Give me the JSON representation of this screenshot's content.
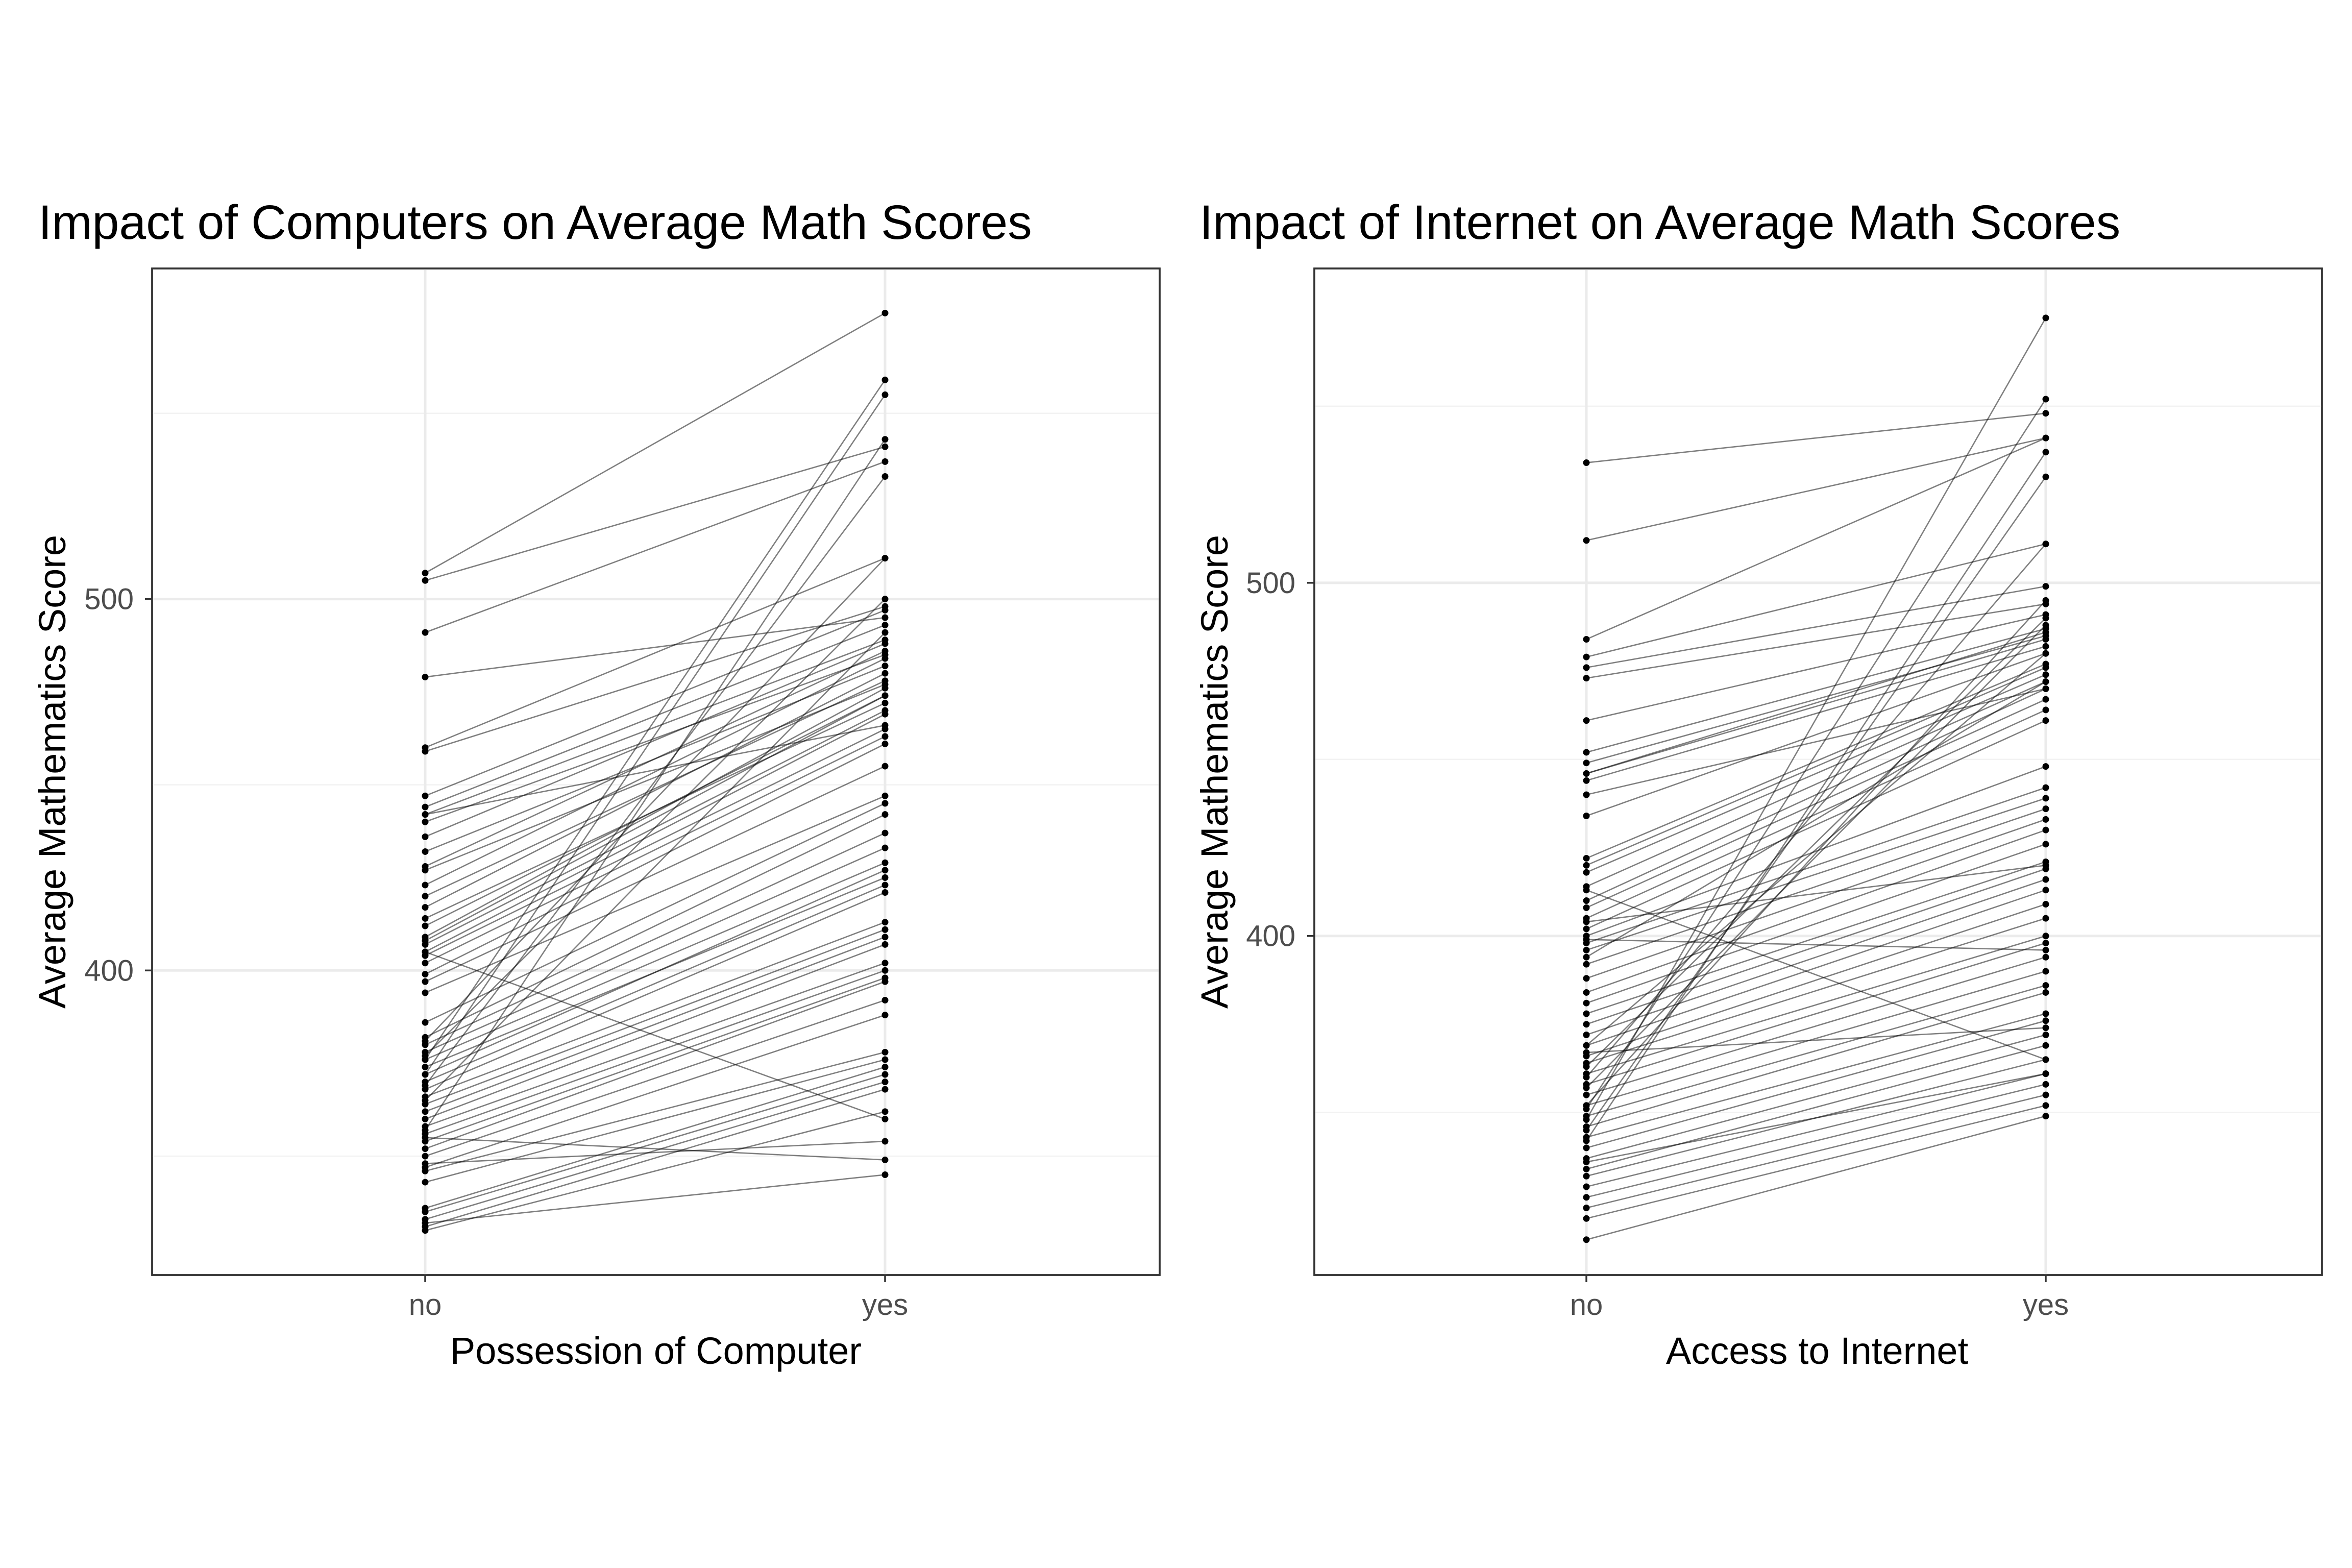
{
  "chart_data": [
    {
      "type": "line",
      "title": "Impact of Computers on Average Math Scores",
      "xlabel": "Possession of Computer",
      "ylabel": "Average Mathematics Score",
      "categories": [
        "no",
        "yes"
      ],
      "ylim": [
        318,
        589
      ],
      "yticks": [
        400,
        500
      ],
      "grid": true,
      "legend": "none",
      "pairs": [
        [
          507,
          577
        ],
        [
          505,
          541
        ],
        [
          491,
          537
        ],
        [
          479,
          495
        ],
        [
          460,
          511
        ],
        [
          459,
          498
        ],
        [
          447,
          497
        ],
        [
          444,
          493
        ],
        [
          442,
          489
        ],
        [
          440,
          485
        ],
        [
          436,
          488
        ],
        [
          432,
          482
        ],
        [
          428,
          486
        ],
        [
          427,
          477
        ],
        [
          423,
          484
        ],
        [
          420,
          478
        ],
        [
          417,
          480
        ],
        [
          414,
          472
        ],
        [
          412,
          474
        ],
        [
          409,
          476
        ],
        [
          407,
          470
        ],
        [
          405,
          469
        ],
        [
          404,
          465
        ],
        [
          402,
          463
        ],
        [
          399,
          461
        ],
        [
          397,
          455
        ],
        [
          394,
          447
        ],
        [
          386,
          445
        ],
        [
          382,
          442
        ],
        [
          380,
          437
        ],
        [
          378,
          433
        ],
        [
          376,
          429
        ],
        [
          374,
          425
        ],
        [
          372,
          427
        ],
        [
          370,
          423
        ],
        [
          368,
          421
        ],
        [
          366,
          413
        ],
        [
          364,
          411
        ],
        [
          362,
          409
        ],
        [
          360,
          407
        ],
        [
          358,
          402
        ],
        [
          356,
          400
        ],
        [
          354,
          398
        ],
        [
          352,
          397
        ],
        [
          350,
          392
        ],
        [
          347,
          388
        ],
        [
          346,
          378
        ],
        [
          343,
          376
        ],
        [
          336,
          374
        ],
        [
          335,
          372
        ],
        [
          333,
          370
        ],
        [
          331,
          368
        ],
        [
          330,
          362
        ],
        [
          376,
          559
        ],
        [
          372,
          555
        ],
        [
          357,
          543
        ],
        [
          369,
          533
        ],
        [
          381,
          511
        ],
        [
          377,
          500
        ],
        [
          365,
          491
        ],
        [
          408,
          474
        ],
        [
          442,
          466
        ],
        [
          405,
          360
        ],
        [
          348,
          354
        ],
        [
          355,
          349
        ],
        [
          332,
          345
        ]
      ]
    },
    {
      "type": "line",
      "title": "Impact of Internet on Average Math Scores",
      "xlabel": "Access to Internet",
      "ylabel": "Average Mathematics Score",
      "categories": [
        "no",
        "yes"
      ],
      "ylim": [
        304,
        589
      ],
      "yticks": [
        400,
        500
      ],
      "grid": true,
      "legend": "none",
      "pairs": [
        [
          534,
          548
        ],
        [
          512,
          541
        ],
        [
          484,
          541
        ],
        [
          479,
          511
        ],
        [
          476,
          499
        ],
        [
          473,
          494
        ],
        [
          461,
          491
        ],
        [
          452,
          487
        ],
        [
          449,
          485
        ],
        [
          446,
          484
        ],
        [
          444,
          482
        ],
        [
          434,
          480
        ],
        [
          422,
          477
        ],
        [
          420,
          476
        ],
        [
          418,
          474
        ],
        [
          414,
          472
        ],
        [
          410,
          470
        ],
        [
          408,
          467
        ],
        [
          405,
          464
        ],
        [
          402,
          461
        ],
        [
          400,
          448
        ],
        [
          398,
          442
        ],
        [
          396,
          439
        ],
        [
          392,
          436
        ],
        [
          388,
          433
        ],
        [
          384,
          430
        ],
        [
          381,
          426
        ],
        [
          378,
          421
        ],
        [
          375,
          419
        ],
        [
          372,
          416
        ],
        [
          369,
          413
        ],
        [
          366,
          409
        ],
        [
          364,
          405
        ],
        [
          361,
          400
        ],
        [
          358,
          398
        ],
        [
          355,
          394
        ],
        [
          352,
          390
        ],
        [
          349,
          386
        ],
        [
          346,
          384
        ],
        [
          343,
          378
        ],
        [
          340,
          376
        ],
        [
          337,
          372
        ],
        [
          334,
          369
        ],
        [
          332,
          365
        ],
        [
          329,
          361
        ],
        [
          326,
          358
        ],
        [
          323,
          355
        ],
        [
          320,
          352
        ],
        [
          314,
          349
        ],
        [
          348,
          575
        ],
        [
          351,
          552
        ],
        [
          342,
          537
        ],
        [
          345,
          530
        ],
        [
          360,
          511
        ],
        [
          352,
          495
        ],
        [
          357,
          488
        ],
        [
          363,
          490
        ],
        [
          369,
          480
        ],
        [
          394,
          472
        ],
        [
          399,
          396
        ],
        [
          404,
          420
        ],
        [
          413,
          365
        ],
        [
          440,
          470
        ],
        [
          446,
          486
        ],
        [
          336,
          361
        ],
        [
          367,
          374
        ]
      ]
    }
  ]
}
